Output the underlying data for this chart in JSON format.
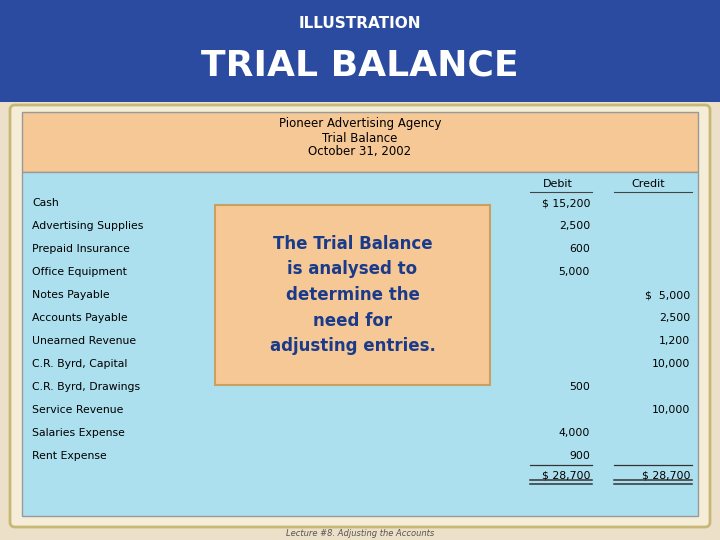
{
  "title_top": "ILLUSTRATION",
  "title_main": "TRIAL BALANCE",
  "header_bg": "#2B4BA0",
  "header_text_color": "#FFFFFF",
  "company_name": "Pioneer Advertising Agency",
  "report_title": "Trial Balance",
  "report_date": "October 31, 2002",
  "table_header_bg": "#F5C896",
  "table_body_bg": "#ADE0EE",
  "overlay_bg": "#F5C896",
  "overlay_border": "#C8A060",
  "overlay_text_color": "#1A3A8A",
  "overlay_text": "The Trial Balance\nis analysed to\ndetermine the\nneed for\nadjusting entries.",
  "col_debit": "Debit",
  "col_credit": "Credit",
  "accounts": [
    {
      "name": "Cash",
      "debit": "$ 15,200",
      "credit": ""
    },
    {
      "name": "Advertising Supplies",
      "debit": "2,500",
      "credit": ""
    },
    {
      "name": "Prepaid Insurance",
      "debit": "600",
      "credit": ""
    },
    {
      "name": "Office Equipment",
      "debit": "5,000",
      "credit": ""
    },
    {
      "name": "Notes Payable",
      "debit": "",
      "credit": "$  5,000"
    },
    {
      "name": "Accounts Payable",
      "debit": "",
      "credit": "2,500"
    },
    {
      "name": "Unearned Revenue",
      "debit": "",
      "credit": "1,200"
    },
    {
      "name": "C.R. Byrd, Capital",
      "debit": "",
      "credit": "10,000"
    },
    {
      "name": "C.R. Byrd, Drawings",
      "debit": "500",
      "credit": ""
    },
    {
      "name": "Service Revenue",
      "debit": "",
      "credit": "10,000"
    },
    {
      "name": "Salaries Expense",
      "debit": "4,000",
      "credit": ""
    },
    {
      "name": "Rent Expense",
      "debit": "900",
      "credit": ""
    }
  ],
  "total_debit": "$ 28,700",
  "total_credit": "$ 28,700",
  "footer_text": "Lecture #8. Adjusting the Accounts",
  "outer_border": "#C8B878",
  "outer_bg": "#EDE0C8",
  "card_bg": "#F5EDD8"
}
